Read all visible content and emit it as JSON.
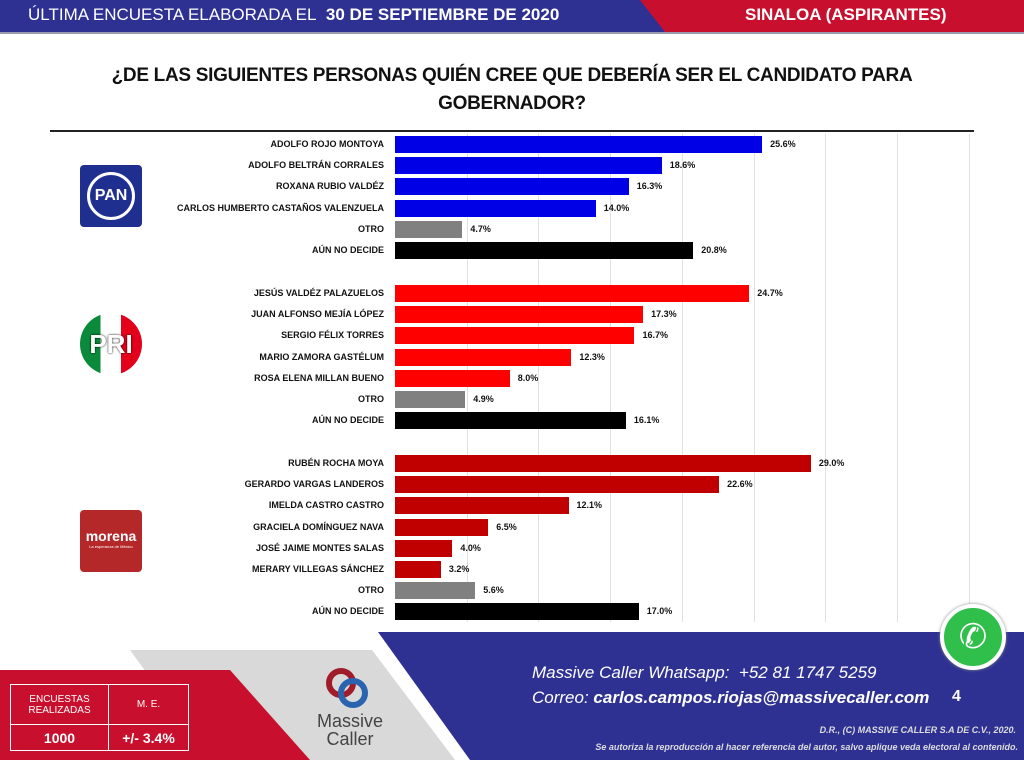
{
  "header": {
    "left_prefix": "ÚLTIMA ENCUESTA ELABORADA EL",
    "date": "30 DE SEPTIEMBRE DE 2020",
    "right": "SINALOA (ASPIRANTES)"
  },
  "chart_data": {
    "type": "bar",
    "orientation": "horizontal",
    "title": "¿DE LAS SIGUIENTES PERSONAS QUIÉN CREE QUE DEBERÍA SER EL CANDIDATO PARA GOBERNADOR?",
    "xlim": [
      0,
      40
    ],
    "grid": true,
    "unit": "%",
    "groups": [
      {
        "party": "PAN",
        "logo_text": "PAN",
        "color": "#0000e6",
        "items": [
          {
            "label": "ADOLFO ROJO MONTOYA",
            "value": 25.6
          },
          {
            "label": "ADOLFO BELTRÁN CORRALES",
            "value": 18.6
          },
          {
            "label": "ROXANA RUBIO VALDÉZ",
            "value": 16.3
          },
          {
            "label": "CARLOS HUMBERTO CASTAÑOS VALENZUELA",
            "value": 14.0
          },
          {
            "label": "OTRO",
            "value": 4.7
          },
          {
            "label": "AÚN NO DECIDE",
            "value": 20.8
          }
        ]
      },
      {
        "party": "PRI",
        "logo_text": "PRI",
        "color": "#ff0000",
        "items": [
          {
            "label": "JESÚS VALDÉZ PALAZUELOS",
            "value": 24.7
          },
          {
            "label": "JUAN ALFONSO MEJÍA LÓPEZ",
            "value": 17.3
          },
          {
            "label": "SERGIO FÉLIX TORRES",
            "value": 16.7
          },
          {
            "label": "MARIO ZAMORA GASTÉLUM",
            "value": 12.3
          },
          {
            "label": "ROSA ELENA MILLAN BUENO",
            "value": 8.0
          },
          {
            "label": "OTRO",
            "value": 4.9
          },
          {
            "label": "AÚN NO DECIDE",
            "value": 16.1
          }
        ]
      },
      {
        "party": "MORENA",
        "logo_text": "morena",
        "logo_sub": "La esperanza de México",
        "color": "#c00000",
        "items": [
          {
            "label": "RUBÉN ROCHA MOYA",
            "value": 29.0
          },
          {
            "label": "GERARDO VARGAS LANDEROS",
            "value": 22.6
          },
          {
            "label": "IMELDA CASTRO CASTRO",
            "value": 12.1
          },
          {
            "label": "GRACIELA DOMÍNGUEZ NAVA",
            "value": 6.5
          },
          {
            "label": "JOSÉ JAIME MONTES SALAS",
            "value": 4.0
          },
          {
            "label": "MERARY VILLEGAS SÁNCHEZ",
            "value": 3.2
          },
          {
            "label": "OTRO",
            "value": 5.6
          },
          {
            "label": "AÚN NO DECIDE",
            "value": 17.0
          }
        ]
      }
    ],
    "special_colors": {
      "OTRO": "#808080",
      "AÚN NO DECIDE": "#000000"
    }
  },
  "footer": {
    "table_h1": "ENCUESTAS REALIZADAS",
    "table_h2": "M. E.",
    "table_v1": "1000",
    "table_v2": "+/- 3.4%",
    "brand1": "Massive",
    "brand2": "Caller",
    "whatsapp_label": "Massive Caller Whatsapp:",
    "whatsapp_number": "+52 81 1747 5259",
    "email_label": "Correo:",
    "email": "carlos.campos.riojas@massivecaller.com",
    "page": "4",
    "copyright": "D.R., (C) MASSIVE CALLER S.A DE C.V., 2020.",
    "notice": "Se autoriza la reproducción al hacer referencia del autor, salvo aplique veda electoral al contenido."
  }
}
